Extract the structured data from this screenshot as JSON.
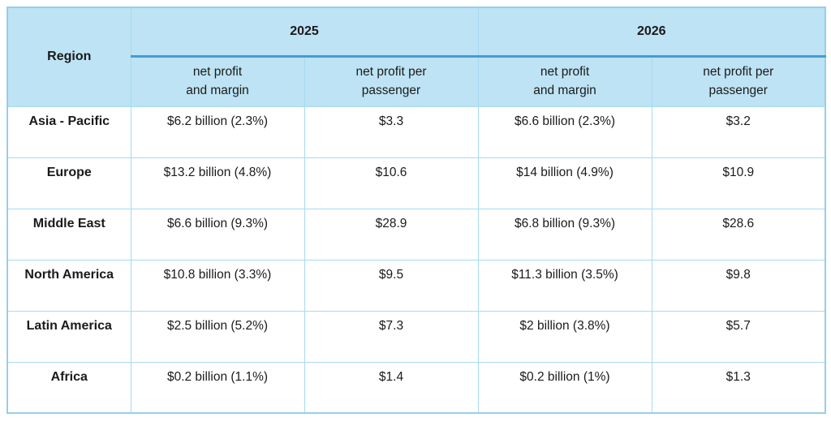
{
  "colors": {
    "header_bg": "#bee3f4",
    "accent_line": "#3e9fd7",
    "grid_border": "#a8daf0",
    "outer_border": "#96cfec",
    "text": "#1a1a1a",
    "page_bg": "#ffffff"
  },
  "chart_data": {
    "type": "table",
    "title": "",
    "region_header": "Region",
    "groups": [
      {
        "year": "2025",
        "subcolumns": [
          {
            "line1": "net profit",
            "line2": "and margin"
          },
          {
            "line1": "net profit per",
            "line2": "passenger"
          }
        ]
      },
      {
        "year": "2026",
        "subcolumns": [
          {
            "line1": "net profit",
            "line2": "and margin"
          },
          {
            "line1": "net profit per",
            "line2": "passenger"
          }
        ]
      }
    ],
    "columns": [
      "Region",
      "2025 net profit and margin",
      "2025 net profit per passenger",
      "2026 net profit and margin",
      "2026 net profit per passenger"
    ],
    "rows": [
      {
        "region": "Asia - Pacific",
        "values": [
          "$6.2 billion (2.3%)",
          "$3.3",
          "$6.6 billion (2.3%)",
          "$3.2"
        ]
      },
      {
        "region": "Europe",
        "values": [
          "$13.2 billion (4.8%)",
          "$10.6",
          "$14 billion (4.9%)",
          "$10.9"
        ]
      },
      {
        "region": "Middle East",
        "values": [
          "$6.6 billion (9.3%)",
          "$28.9",
          "$6.8 billion (9.3%)",
          "$28.6"
        ]
      },
      {
        "region": "North America",
        "values": [
          "$10.8 billion (3.3%)",
          "$9.5",
          "$11.3 billion (3.5%)",
          "$9.8"
        ]
      },
      {
        "region": "Latin America",
        "values": [
          "$2.5 billion (5.2%)",
          "$7.3",
          "$2 billion (3.8%)",
          "$5.7"
        ]
      },
      {
        "region": "Africa",
        "values": [
          "$0.2 billion (1.1%)",
          "$1.4",
          "$0.2 billion (1%)",
          "$1.3"
        ]
      }
    ]
  }
}
